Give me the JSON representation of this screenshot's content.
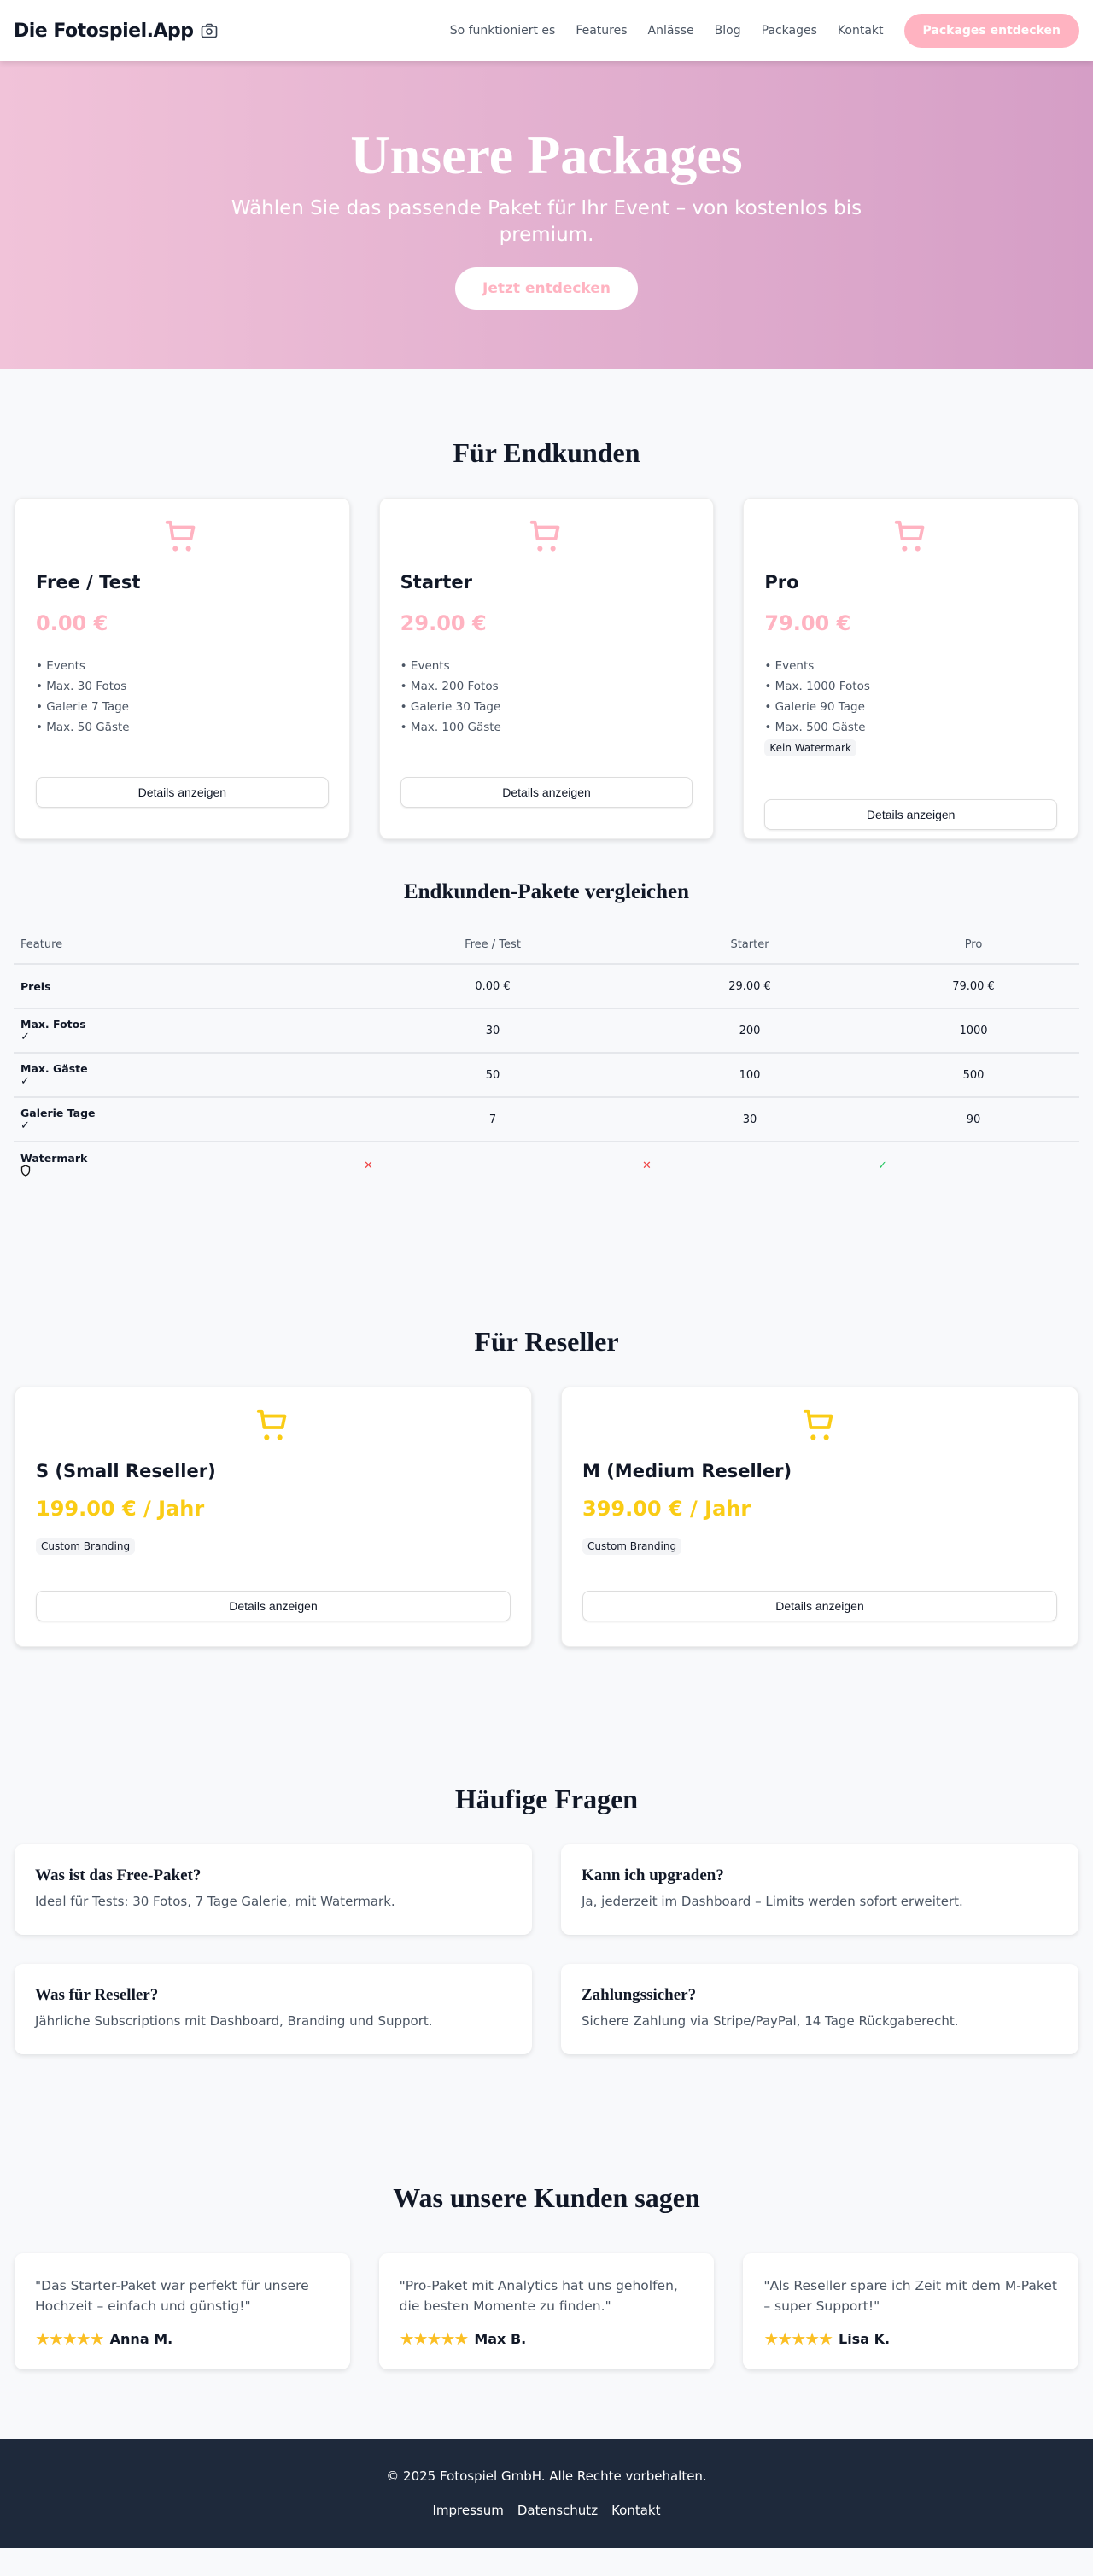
{
  "nav": {
    "logo": "Die Fotospiel.App",
    "links": [
      "So funktioniert es",
      "Features",
      "Anlässe",
      "Blog",
      "Packages",
      "Kontakt"
    ],
    "cta": "Packages entdecken"
  },
  "hero": {
    "title": "Unsere Packages",
    "subtitle": "Wählen Sie das passende Paket für Ihr Event – von kostenlos bis premium.",
    "cta": "Jetzt entdecken"
  },
  "colors": {
    "pink": "#ffb3c1",
    "yellow": "#facc15",
    "footer": "#1e293b"
  },
  "endkunden": {
    "title": "Für Endkunden",
    "packages": [
      {
        "name": "Free / Test",
        "price": "0.00 €",
        "features": [
          "• Events",
          "• Max. 30 Fotos",
          "• Galerie 7 Tage",
          "• Max. 50 Gäste"
        ],
        "badge": "",
        "button": "Details anzeigen"
      },
      {
        "name": "Starter",
        "price": "29.00 €",
        "features": [
          "• Events",
          "• Max. 200 Fotos",
          "• Galerie 30 Tage",
          "• Max. 100 Gäste"
        ],
        "badge": "",
        "button": "Details anzeigen"
      },
      {
        "name": "Pro",
        "price": "79.00 €",
        "features": [
          "• Events",
          "• Max. 1000 Fotos",
          "• Galerie 90 Tage",
          "• Max. 500 Gäste"
        ],
        "badge": "Kein Watermark",
        "button": "Details anzeigen"
      }
    ]
  },
  "compare": {
    "title": "Endkunden-Pakete vergleichen",
    "headers": [
      "Feature",
      "Free / Test",
      "Starter",
      "Pro"
    ],
    "rows": [
      {
        "label": "Preis",
        "icon": "",
        "values": [
          "0.00 €",
          "29.00 €",
          "79.00 €"
        ]
      },
      {
        "label": "Max. Fotos",
        "icon": "✓",
        "values": [
          "30",
          "200",
          "1000"
        ]
      },
      {
        "label": "Max. Gäste",
        "icon": "✓",
        "values": [
          "50",
          "100",
          "500"
        ]
      },
      {
        "label": "Galerie Tage",
        "icon": "✓",
        "values": [
          "7",
          "30",
          "90"
        ]
      }
    ],
    "watermark": {
      "label": "Watermark",
      "values": [
        "✕",
        "✕",
        "✓"
      ]
    }
  },
  "reseller": {
    "title": "Für Reseller",
    "packages": [
      {
        "name": "S (Small Reseller)",
        "price": "199.00 € / Jahr",
        "badge": "Custom Branding",
        "button": "Details anzeigen"
      },
      {
        "name": "M (Medium Reseller)",
        "price": "399.00 € / Jahr",
        "badge": "Custom Branding",
        "button": "Details anzeigen"
      }
    ]
  },
  "faq": {
    "title": "Häufige Fragen",
    "items": [
      {
        "q": "Was ist das Free-Paket?",
        "a": "Ideal für Tests: 30 Fotos, 7 Tage Galerie, mit Watermark."
      },
      {
        "q": "Kann ich upgraden?",
        "a": "Ja, jederzeit im Dashboard – Limits werden sofort erweitert."
      },
      {
        "q": "Was für Reseller?",
        "a": "Jährliche Subscriptions mit Dashboard, Branding und Support."
      },
      {
        "q": "Zahlungssicher?",
        "a": "Sichere Zahlung via Stripe/PayPal, 14 Tage Rückgaberecht."
      }
    ]
  },
  "testimonials": {
    "title": "Was unsere Kunden sagen",
    "items": [
      {
        "text": "\"Das Starter-Paket war perfekt für unsere Hochzeit – einfach und günstig!\"",
        "name": "Anna M.",
        "rating": 5
      },
      {
        "text": "\"Pro-Paket mit Analytics hat uns geholfen, die besten Momente zu finden.\"",
        "name": "Max B.",
        "rating": 5
      },
      {
        "text": "\"Als Reseller spare ich Zeit mit dem M-Paket – super Support!\"",
        "name": "Lisa K.",
        "rating": 5
      }
    ]
  },
  "footer": {
    "copyright": "© 2025 Fotospiel GmbH. Alle Rechte vorbehalten.",
    "links": [
      "Impressum",
      "Datenschutz",
      "Kontakt"
    ]
  }
}
